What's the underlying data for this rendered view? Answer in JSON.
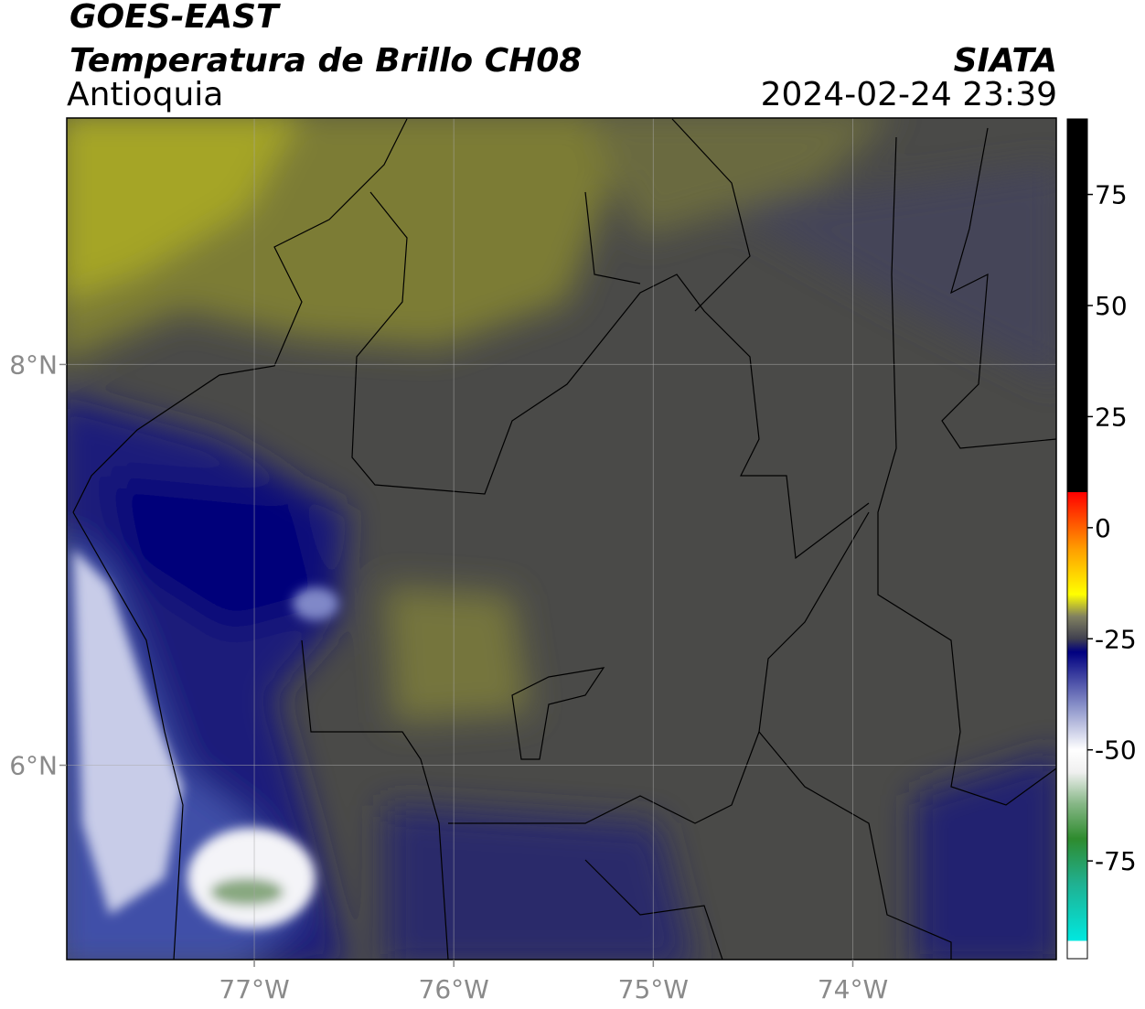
{
  "header": {
    "satellite": "GOES-EAST",
    "product": "Temperatura de Brillo CH08",
    "region": "Antioquia",
    "source": "SIATA",
    "datetime": "2024-02-24 23:39"
  },
  "map": {
    "xlim": [
      -77.94,
      -72.98
    ],
    "ylim": [
      5.03,
      9.23
    ],
    "xticks": [
      {
        "value": -77,
        "label": "77°W"
      },
      {
        "value": -76,
        "label": "76°W"
      },
      {
        "value": -75,
        "label": "75°W"
      },
      {
        "value": -74,
        "label": "74°W"
      }
    ],
    "yticks": [
      {
        "value": 6,
        "label": "6°N"
      },
      {
        "value": 8,
        "label": "8°N"
      }
    ],
    "grid": true
  },
  "colorbar": {
    "lim": [
      -97,
      92
    ],
    "ticks": [
      -75,
      -50,
      -25,
      0,
      25,
      50,
      75
    ],
    "stops": [
      [
        -97,
        "#ffffff"
      ],
      [
        -93,
        "#ffffff"
      ],
      [
        -93,
        "#00e8e0"
      ],
      [
        -80,
        "#20b090"
      ],
      [
        -70,
        "#2e8b2e"
      ],
      [
        -62,
        "#88b888"
      ],
      [
        -55,
        "#f0f0f0"
      ],
      [
        -50,
        "#ffffff"
      ],
      [
        -40,
        "#8890c8"
      ],
      [
        -28,
        "#000080"
      ],
      [
        -25,
        "#404050"
      ],
      [
        -20,
        "#808060"
      ],
      [
        -15,
        "#ffff00"
      ],
      [
        -5,
        "#ffa000"
      ],
      [
        8,
        "#ff0000"
      ],
      [
        8,
        "#000000"
      ],
      [
        92,
        "#000000"
      ]
    ]
  }
}
